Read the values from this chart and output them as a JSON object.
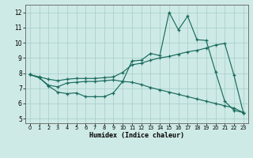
{
  "xlabel": "Humidex (Indice chaleur)",
  "xlim": [
    -0.5,
    23.5
  ],
  "ylim": [
    4.7,
    12.5
  ],
  "yticks": [
    5,
    6,
    7,
    8,
    9,
    10,
    11,
    12
  ],
  "xticks": [
    0,
    1,
    2,
    3,
    4,
    5,
    6,
    7,
    8,
    9,
    10,
    11,
    12,
    13,
    14,
    15,
    16,
    17,
    18,
    19,
    20,
    21,
    22,
    23
  ],
  "bg_color": "#ceeae6",
  "grid_color": "#a4cdc8",
  "line_color": "#1a6b5e",
  "line1_x": [
    0,
    1,
    2,
    3,
    4,
    5,
    6,
    7,
    8,
    9,
    10,
    11,
    12,
    13,
    14,
    15,
    16,
    17,
    18,
    19,
    20,
    21,
    22,
    23
  ],
  "line1_y": [
    7.9,
    7.7,
    7.15,
    6.75,
    6.65,
    6.7,
    6.45,
    6.45,
    6.45,
    6.7,
    7.45,
    8.8,
    8.85,
    9.3,
    9.15,
    12.0,
    10.85,
    11.75,
    10.2,
    10.15,
    8.1,
    6.15,
    5.55,
    5.4
  ],
  "line2_x": [
    0,
    1,
    2,
    3,
    4,
    5,
    6,
    7,
    8,
    9,
    10,
    11,
    12,
    13,
    14,
    15,
    16,
    17,
    18,
    19,
    20,
    21,
    22,
    23
  ],
  "line2_y": [
    7.9,
    7.75,
    7.6,
    7.5,
    7.6,
    7.65,
    7.65,
    7.65,
    7.7,
    7.75,
    8.05,
    8.55,
    8.65,
    8.85,
    9.0,
    9.1,
    9.25,
    9.4,
    9.5,
    9.65,
    9.85,
    9.95,
    7.85,
    5.4
  ],
  "line3_x": [
    0,
    1,
    2,
    3,
    4,
    5,
    6,
    7,
    8,
    9,
    10,
    11,
    12,
    13,
    14,
    15,
    16,
    17,
    18,
    19,
    20,
    21,
    22,
    23
  ],
  "line3_y": [
    7.9,
    7.7,
    7.2,
    7.1,
    7.35,
    7.4,
    7.45,
    7.45,
    7.5,
    7.55,
    7.45,
    7.4,
    7.25,
    7.05,
    6.9,
    6.75,
    6.6,
    6.45,
    6.3,
    6.15,
    6.0,
    5.85,
    5.7,
    5.4
  ]
}
